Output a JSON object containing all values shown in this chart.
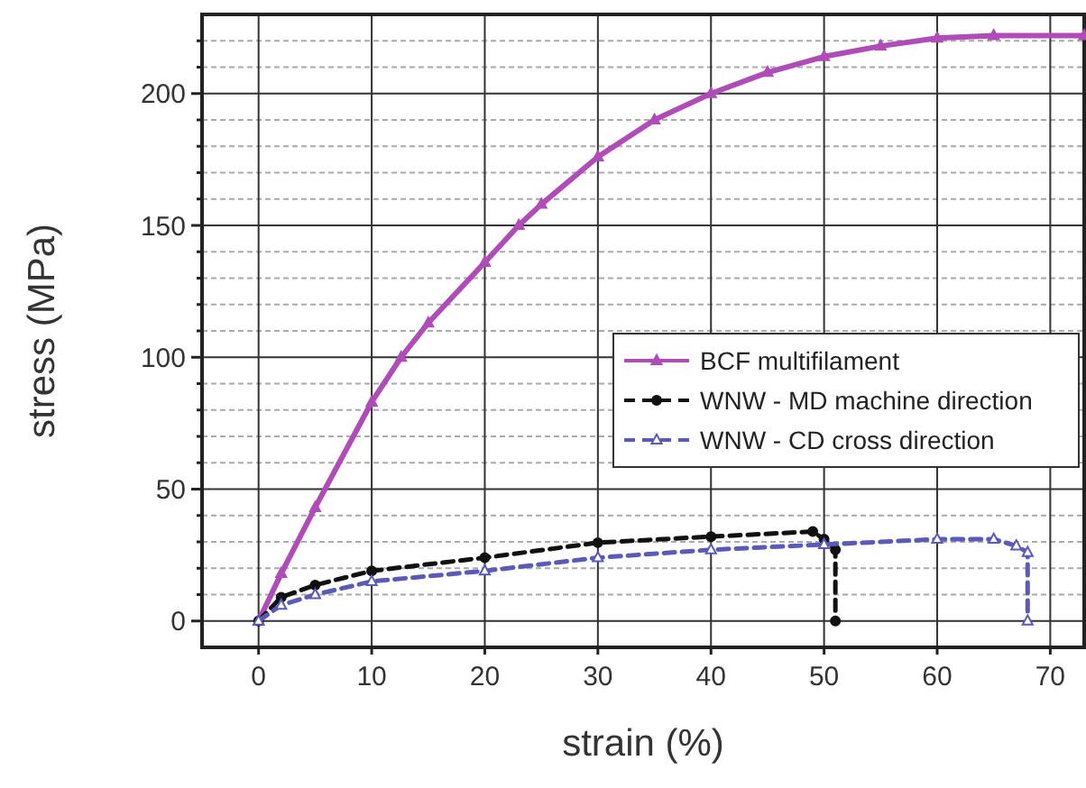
{
  "chart_data": {
    "type": "line",
    "xlabel": "strain (%)",
    "ylabel": "stress (MPa)",
    "xlim": [
      -5,
      73
    ],
    "ylim": [
      -10,
      230
    ],
    "xticks": [
      0,
      10,
      20,
      30,
      40,
      50,
      60,
      70
    ],
    "yticks": [
      0,
      {
        "value": 10,
        "label": null
      },
      {
        "value": 20,
        "label": null
      },
      {
        "value": 30,
        "label": null
      },
      {
        "value": 40,
        "label": null
      },
      50,
      {
        "value": 60,
        "label": null
      },
      {
        "value": 70,
        "label": null
      },
      {
        "value": 80,
        "label": null
      },
      {
        "value": 90,
        "label": null
      },
      100,
      {
        "value": 110,
        "label": null
      },
      {
        "value": 120,
        "label": null
      },
      {
        "value": 130,
        "label": null
      },
      {
        "value": 140,
        "label": null
      },
      150,
      {
        "value": 160,
        "label": null
      },
      {
        "value": 170,
        "label": null
      },
      {
        "value": 180,
        "label": null
      },
      {
        "value": 190,
        "label": null
      },
      200,
      {
        "value": 210,
        "label": null
      },
      {
        "value": 220,
        "label": null
      }
    ],
    "grid": true,
    "legend": "right",
    "series": [
      {
        "name": "BCF multifilament",
        "color": "#b04cb8",
        "marker": "triangle",
        "line_style": "solid",
        "x": [
          0,
          2,
          5,
          10,
          12.6,
          15,
          20,
          23,
          25,
          30,
          35,
          40,
          45,
          50,
          55,
          60,
          65,
          73
        ],
        "values": [
          0,
          18,
          43,
          83,
          100,
          113,
          136,
          150,
          158,
          176,
          190,
          200,
          208,
          214,
          218,
          221,
          222,
          222
        ]
      },
      {
        "name": "WNW - MD machine direction",
        "color": "#111111",
        "marker": "circle",
        "line_style": "dashed",
        "x": [
          0,
          2,
          5,
          10,
          20,
          30,
          40,
          49,
          50,
          51,
          51
        ],
        "values": [
          0,
          9,
          13.6,
          19,
          24,
          29.7,
          32,
          33.9,
          31,
          27,
          0
        ]
      },
      {
        "name": "WNW - CD cross direction",
        "color": "#5a5ab8",
        "marker": "triangle",
        "line_style": "dashed",
        "x": [
          0,
          2,
          5,
          10,
          20,
          30,
          40,
          50,
          60,
          65,
          67,
          68,
          68
        ],
        "values": [
          0,
          6,
          10,
          15,
          19,
          24,
          27,
          29,
          31,
          31,
          28.5,
          26,
          0
        ]
      }
    ]
  }
}
